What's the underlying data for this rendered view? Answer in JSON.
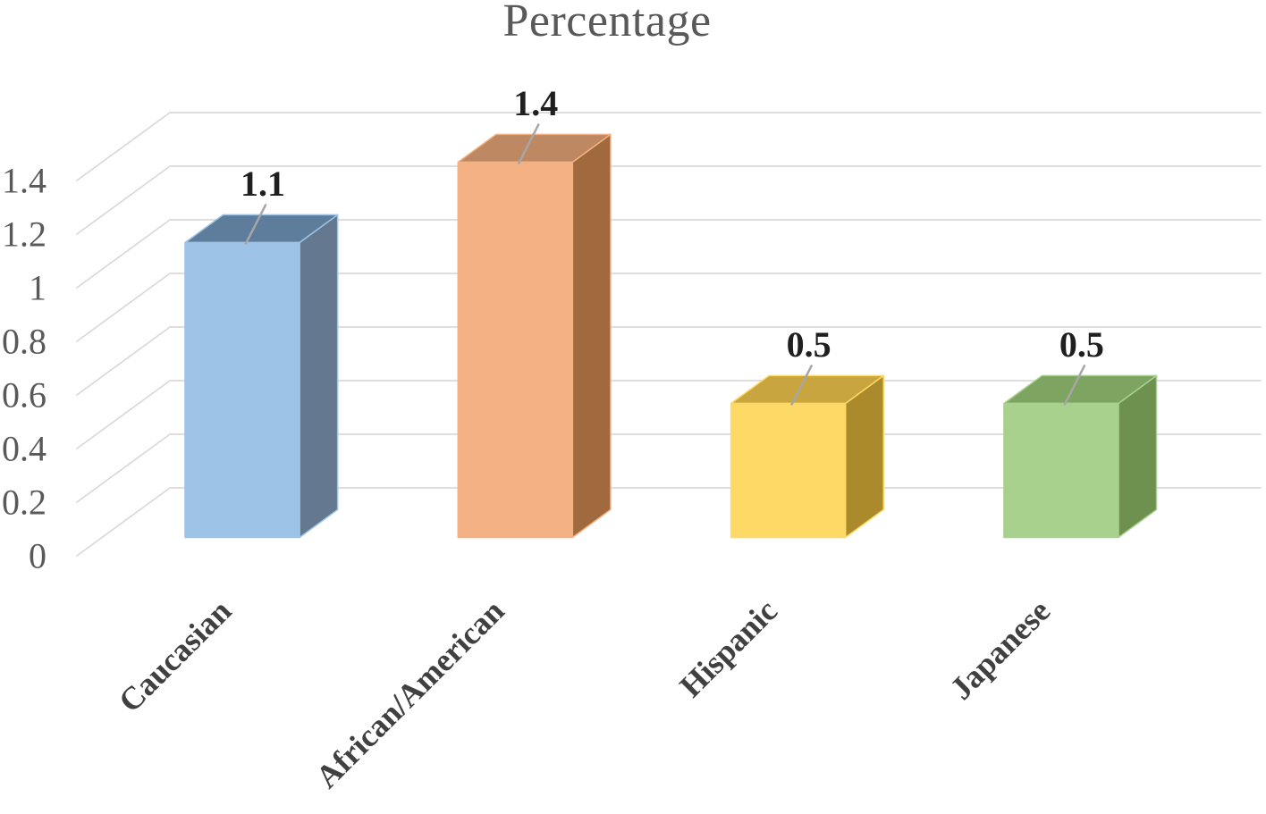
{
  "chart_data": {
    "type": "bar",
    "variant": "3d-column",
    "title": "Percentage",
    "categories": [
      "Caucasian",
      "African/American",
      "Hispanic",
      "Japanese"
    ],
    "values": [
      1.1,
      1.4,
      0.5,
      0.5
    ],
    "data_labels": [
      "1.1",
      "1.4",
      "0.5",
      "0.5"
    ],
    "xlabel": "",
    "ylabel": "",
    "ylim": [
      0,
      1.4
    ],
    "ytick_step": 0.2,
    "yticks": [
      "0",
      "0.2",
      "0.4",
      "0.6",
      "0.8",
      "1",
      "1.2",
      "1.4"
    ],
    "grid": true,
    "legend": "none",
    "bar_colors": [
      {
        "name": "blue",
        "front": "#9DC3E6",
        "top": "#5E7D9D",
        "side": "#64798F"
      },
      {
        "name": "orange",
        "front": "#F4B183",
        "top": "#BE8962",
        "side": "#A06A3E"
      },
      {
        "name": "gold",
        "front": "#FFD966",
        "top": "#C8A53E",
        "side": "#AA8A2B"
      },
      {
        "name": "green",
        "front": "#A9D18E",
        "top": "#7DA460",
        "side": "#6E9150"
      }
    ],
    "colors": {
      "background": "#FFFFFF",
      "gridline": "#D9D9D9",
      "leader_line": "#A6A6A6",
      "title_text": "#595959",
      "axis_tick_text": "#595959",
      "category_text": "#404040",
      "data_label_text": "#1F1F1F"
    }
  }
}
